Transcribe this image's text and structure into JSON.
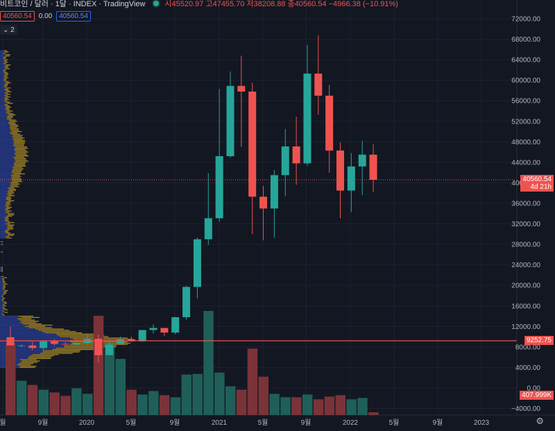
{
  "header": {
    "symbol": "비트코인 / 달러 · 1달 · INDEX · TradingView",
    "ohlc": "시45520.97 고47455.70 저38208.88 종40560.54 −4966.38 (−10.91%)",
    "sell_price": "40560.54",
    "spread": "0.00",
    "buy_price": "40560.54",
    "indicator_toggle": "2"
  },
  "price_axis": {
    "ticks": [
      "72000.00",
      "68000.00",
      "64000.00",
      "60000.00",
      "56000.00",
      "52000.00",
      "48000.00",
      "44000.00",
      "40000.00",
      "36000.00",
      "32000.00",
      "28000.00",
      "24000.00",
      "20000.00",
      "16000.00",
      "12000.00",
      "8000.00",
      "4000.00",
      "0.00",
      "−4000.00"
    ],
    "current_price": "40560.54",
    "countdown": "4d 21h",
    "line_price": "9252.75",
    "volume_value": "407.999K"
  },
  "time_axis": {
    "labels": [
      "월",
      "9월",
      "2020",
      "5월",
      "9월",
      "2021",
      "5월",
      "9월",
      "2022",
      "5월",
      "9월",
      "2023"
    ]
  },
  "chart_data": {
    "type": "candlestick",
    "title": "",
    "ylim": [
      -5500,
      75000
    ],
    "candles": [
      {
        "o": 9900,
        "h": 12000,
        "l": 8300,
        "c": 8300,
        "v": 10500
      },
      {
        "o": 8300,
        "h": 8500,
        "l": 7900,
        "c": 8300,
        "v": 5000
      },
      {
        "o": 8300,
        "h": 9000,
        "l": 7400,
        "c": 7800,
        "v": 4400
      },
      {
        "o": 7800,
        "h": 9200,
        "l": 6800,
        "c": 9100,
        "v": 3700
      },
      {
        "o": 9100,
        "h": 9500,
        "l": 8200,
        "c": 8600,
        "v": 3300
      },
      {
        "o": 8600,
        "h": 9000,
        "l": 8400,
        "c": 8500,
        "v": 2800
      },
      {
        "o": 8500,
        "h": 9200,
        "l": 8300,
        "c": 8700,
        "v": 3900
      },
      {
        "o": 8700,
        "h": 10400,
        "l": 8600,
        "c": 9600,
        "v": 3100
      },
      {
        "o": 9600,
        "h": 10400,
        "l": 5000,
        "c": 6400,
        "v": 14500
      },
      {
        "o": 6400,
        "h": 9400,
        "l": 6400,
        "c": 8600,
        "v": 9900
      },
      {
        "o": 8600,
        "h": 10000,
        "l": 8600,
        "c": 9500,
        "v": 8200
      },
      {
        "o": 9500,
        "h": 10000,
        "l": 9000,
        "c": 9100,
        "v": 3700
      },
      {
        "o": 9100,
        "h": 11200,
        "l": 9000,
        "c": 11300,
        "v": 3000
      },
      {
        "o": 11300,
        "h": 12400,
        "l": 10600,
        "c": 11700,
        "v": 3500
      },
      {
        "o": 11700,
        "h": 11600,
        "l": 10100,
        "c": 10800,
        "v": 2900
      },
      {
        "o": 10800,
        "h": 13900,
        "l": 10500,
        "c": 13800,
        "v": 2600
      },
      {
        "o": 13800,
        "h": 19900,
        "l": 13300,
        "c": 19700,
        "v": 5900
      },
      {
        "o": 19700,
        "h": 29300,
        "l": 17500,
        "c": 29000,
        "v": 6000
      },
      {
        "o": 29000,
        "h": 41900,
        "l": 27900,
        "c": 33100,
        "v": 15200
      },
      {
        "o": 33100,
        "h": 58300,
        "l": 32400,
        "c": 45200,
        "v": 6200
      },
      {
        "o": 45200,
        "h": 61700,
        "l": 44900,
        "c": 58900,
        "v": 4200
      },
      {
        "o": 58900,
        "h": 64800,
        "l": 47000,
        "c": 57800,
        "v": 3700
      },
      {
        "o": 57800,
        "h": 59500,
        "l": 30000,
        "c": 37300,
        "v": 9700
      },
      {
        "o": 37300,
        "h": 39400,
        "l": 28800,
        "c": 35000,
        "v": 5600
      },
      {
        "o": 35000,
        "h": 42500,
        "l": 29300,
        "c": 41500,
        "v": 3100
      },
      {
        "o": 41500,
        "h": 50500,
        "l": 37400,
        "c": 47100,
        "v": 2600
      },
      {
        "o": 47100,
        "h": 52900,
        "l": 39600,
        "c": 43800,
        "v": 2600
      },
      {
        "o": 43800,
        "h": 66900,
        "l": 43300,
        "c": 61300,
        "v": 3000
      },
      {
        "o": 61300,
        "h": 68800,
        "l": 53300,
        "c": 57000,
        "v": 2300
      },
      {
        "o": 57000,
        "h": 59100,
        "l": 42000,
        "c": 46300,
        "v": 2700
      },
      {
        "o": 46300,
        "h": 47900,
        "l": 33100,
        "c": 38500,
        "v": 2900
      },
      {
        "o": 38500,
        "h": 45800,
        "l": 34300,
        "c": 43200,
        "v": 2300
      },
      {
        "o": 43200,
        "h": 48200,
        "l": 37600,
        "c": 45500,
        "v": 2500
      },
      {
        "o": 45500,
        "h": 47500,
        "l": 38200,
        "c": 40600,
        "v": 400
      }
    ]
  },
  "colors": {
    "background": "#131722",
    "up": "#26a69a",
    "down": "#ef5350",
    "volume_up": "#1f5f59",
    "volume_down": "#7a3338",
    "profile_blue": "#2f4ab8",
    "profile_gold": "#c9a227"
  },
  "icons": {
    "settings": "gear-icon",
    "market_status": "market-status-dot-icon"
  }
}
